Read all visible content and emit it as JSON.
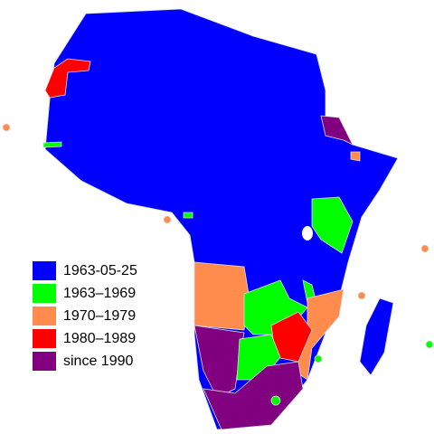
{
  "legend": {
    "items": [
      {
        "label": "1963-05-25",
        "color": "#0000ff"
      },
      {
        "label": "1963–1969",
        "color": "#00ff00"
      },
      {
        "label": "1970–1979",
        "color": "#ff8c4c"
      },
      {
        "label": "1980–1989",
        "color": "#ff0000"
      },
      {
        "label": "since 1990",
        "color": "#800080"
      }
    ]
  }
}
